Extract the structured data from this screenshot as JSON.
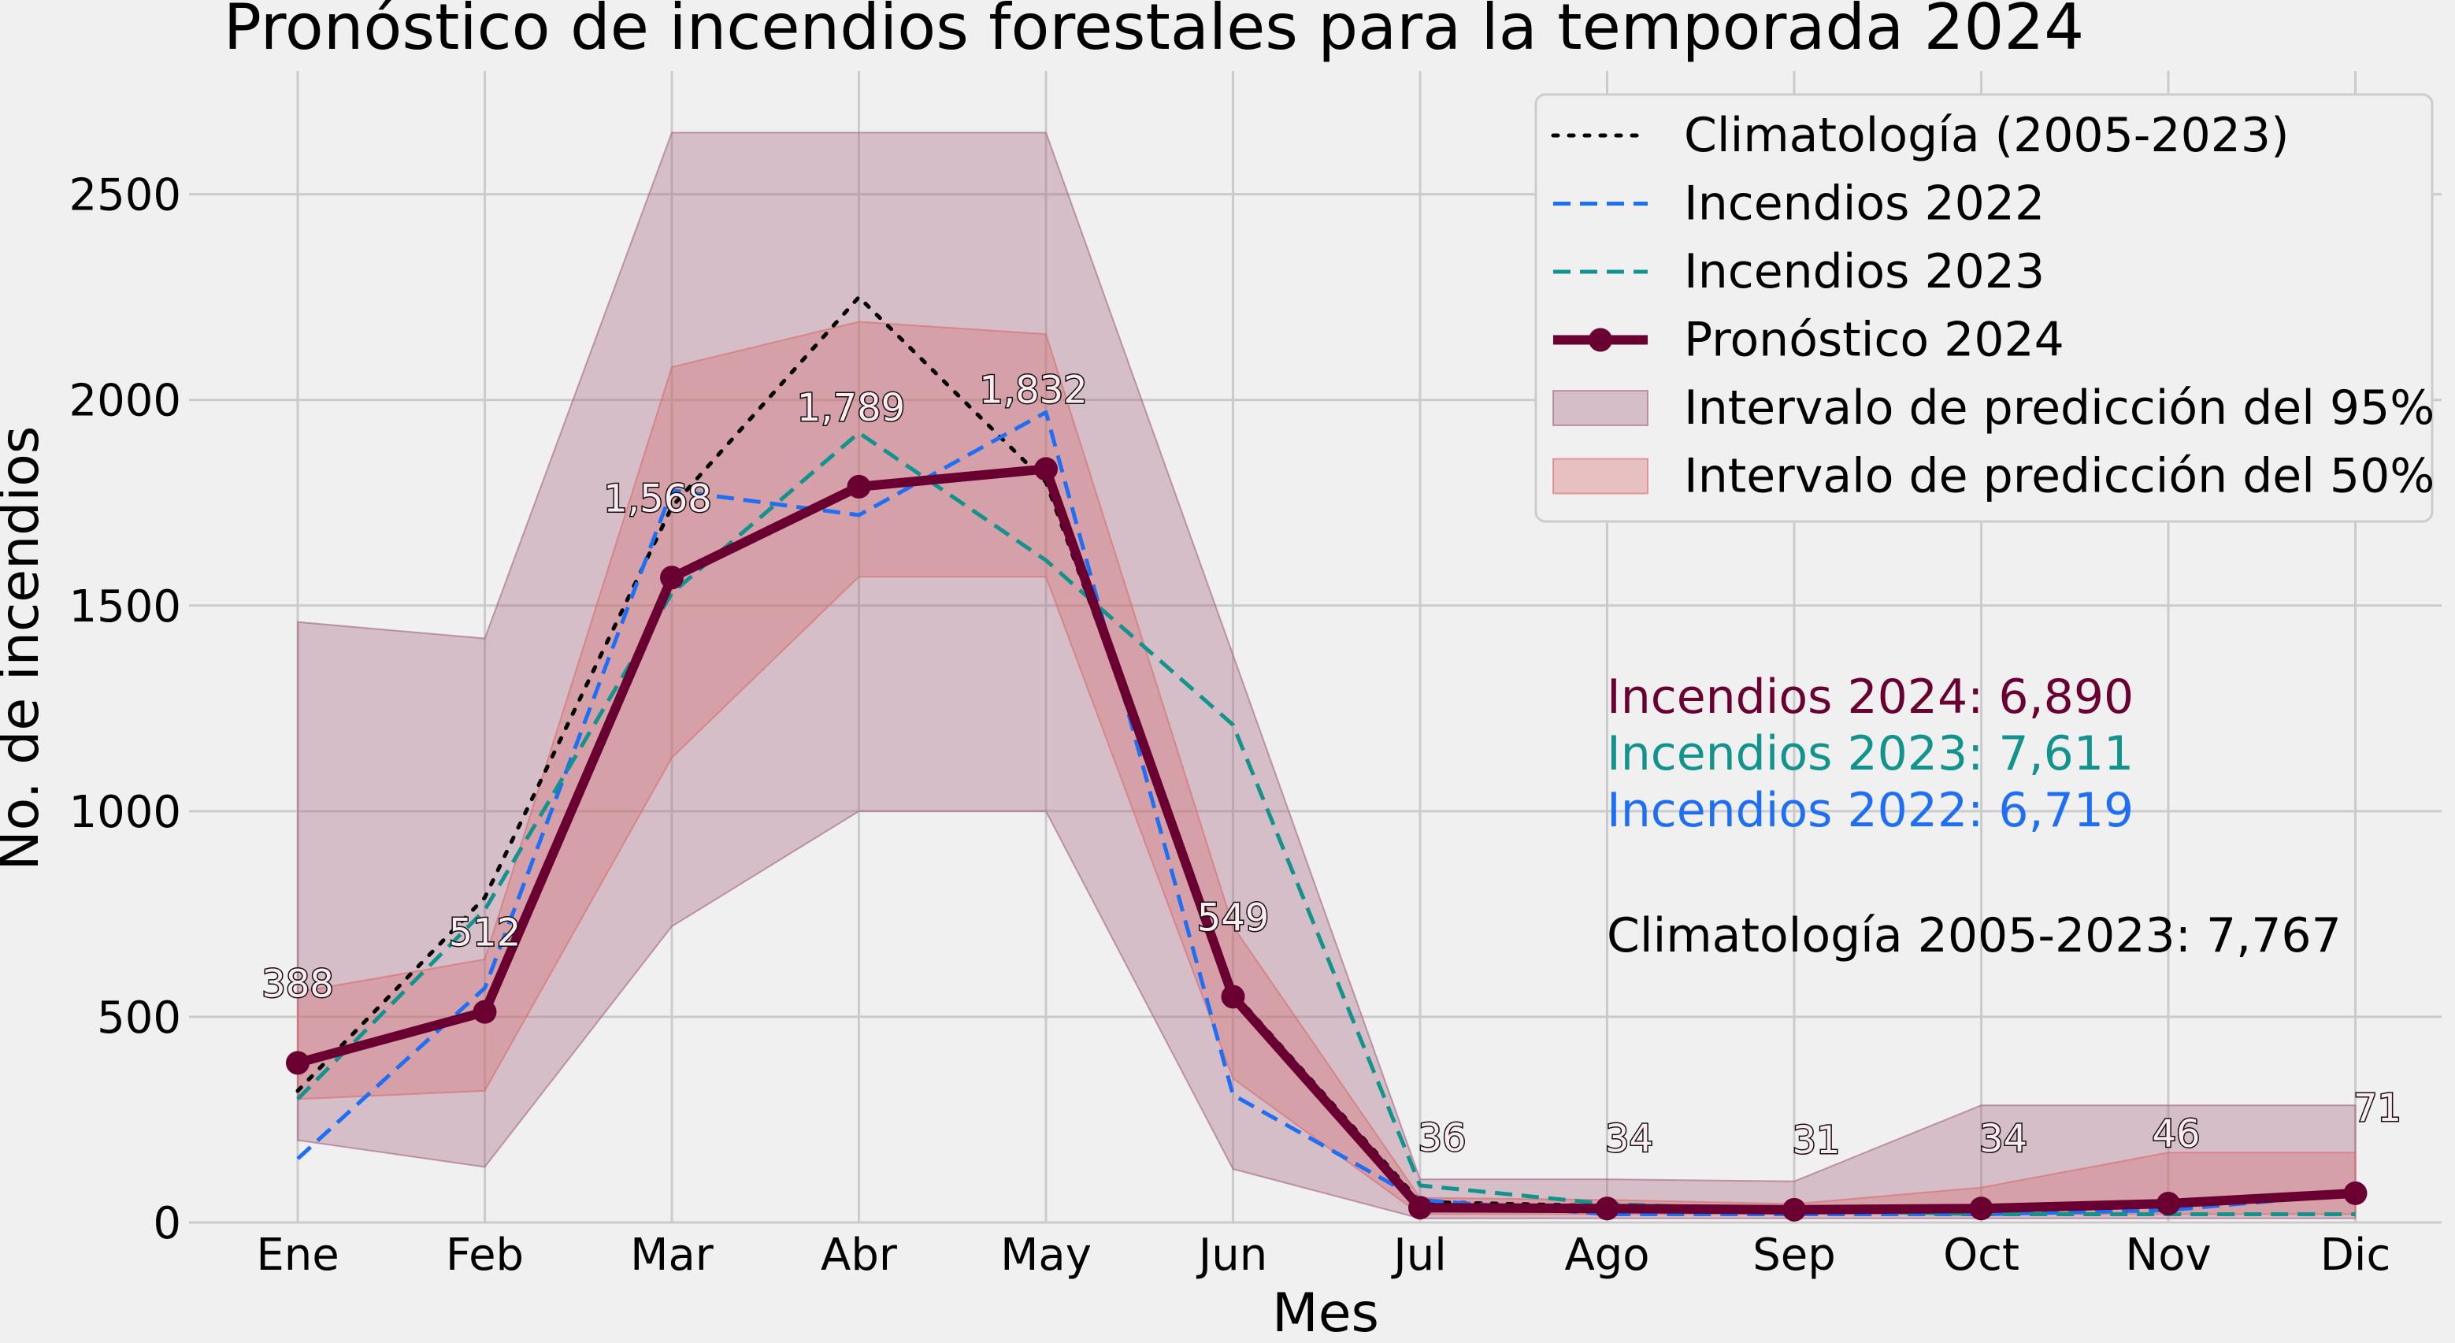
{
  "chart_data": {
    "type": "line",
    "title": "Pronóstico de incendios forestales para la temporada 2024",
    "xlabel": "Mes",
    "ylabel": "No. de incendios",
    "categories": [
      "Ene",
      "Feb",
      "Mar",
      "Abr",
      "May",
      "Jun",
      "Jul",
      "Ago",
      "Sep",
      "Oct",
      "Nov",
      "Dic"
    ],
    "ylim": [
      0,
      2800
    ],
    "yticks": [
      "0",
      "500",
      "1000",
      "1500",
      "2000",
      "2500"
    ],
    "grid": true,
    "legend_position": "top-right",
    "series": [
      {
        "name": "Climatología (2005-2023)",
        "style": "dotted",
        "color": "#000000",
        "values": [
          320,
          790,
          1740,
          2250,
          1800,
          560,
          50,
          40,
          30,
          30,
          40,
          70
        ]
      },
      {
        "name": "Incendios 2022",
        "style": "dashed",
        "color": "#1f6ff5",
        "values": [
          155,
          570,
          1780,
          1720,
          1970,
          310,
          55,
          20,
          20,
          20,
          30,
          70
        ]
      },
      {
        "name": "Incendios 2023",
        "style": "dashed",
        "color": "#13938e",
        "values": [
          300,
          760,
          1530,
          1920,
          1610,
          1210,
          90,
          45,
          30,
          20,
          20,
          20
        ]
      },
      {
        "name": "Pronóstico 2024",
        "style": "solid-marker",
        "color": "#6a0032",
        "values": [
          388,
          512,
          1568,
          1789,
          1832,
          549,
          36,
          34,
          31,
          34,
          46,
          71
        ],
        "labels": [
          "388",
          "512",
          "1,568",
          "1,789",
          "1,832",
          "549",
          "36",
          "34",
          "31",
          "34",
          "46",
          "71"
        ]
      }
    ],
    "bands": [
      {
        "name": "Intervalo de predicción del 95%",
        "color": "#a3627f",
        "opacity": 0.35,
        "lower": [
          200,
          135,
          720,
          1000,
          1000,
          130,
          10,
          10,
          10,
          10,
          10,
          10
        ],
        "upper": [
          1460,
          1420,
          2650,
          2650,
          2650,
          1380,
          105,
          105,
          100,
          285,
          285,
          285
        ]
      },
      {
        "name": "Intervalo de predicción del 50%",
        "color": "#d76a6a",
        "opacity": 0.35,
        "lower": [
          300,
          320,
          1130,
          1570,
          1570,
          350,
          20,
          20,
          20,
          20,
          20,
          20
        ],
        "upper": [
          560,
          640,
          2080,
          2190,
          2160,
          720,
          60,
          55,
          45,
          85,
          170,
          170
        ]
      }
    ],
    "annotations": [
      {
        "text": "Incendios 2024: 6,890",
        "color": "#6a0032"
      },
      {
        "text": "Incendios 2023: 7,611",
        "color": "#13938e"
      },
      {
        "text": "Incendios 2022: 6,719",
        "color": "#1f6ff5"
      },
      {
        "text": "Climatología 2005-2023: 7,767",
        "color": "#000000"
      }
    ]
  }
}
